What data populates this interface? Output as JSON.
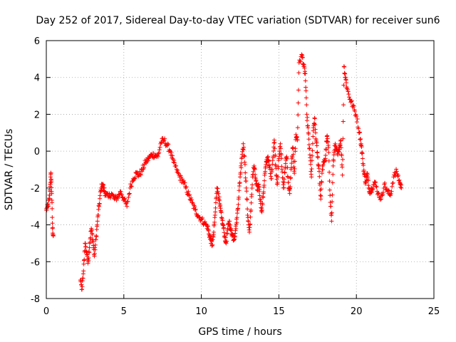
{
  "chart_data": {
    "type": "scatter",
    "title": "Day 252 of 2017, Sidereal Day-to-day VTEC variation (SDTVAR) for receiver sun6",
    "xlabel": "GPS time / hours",
    "ylabel": "SDTVAR / TECUs",
    "xlim": [
      0,
      25
    ],
    "ylim": [
      -8,
      6
    ],
    "x_ticks": [
      0,
      5,
      10,
      15,
      20,
      25
    ],
    "y_ticks": [
      -8,
      -6,
      -4,
      -2,
      0,
      2,
      4,
      6
    ],
    "grid": true,
    "marker": "+",
    "color": "#ff0000",
    "series": [
      {
        "name": "SDTVAR",
        "anchors": [
          [
            0.0,
            -3.2
          ],
          [
            0.1,
            -3.0
          ],
          [
            0.2,
            -2.6
          ],
          [
            0.25,
            -1.8
          ],
          [
            0.3,
            -1.2
          ],
          [
            0.35,
            -2.3
          ],
          [
            0.4,
            -4.2
          ],
          [
            0.45,
            -4.6
          ],
          [
            2.2,
            -7.0
          ],
          [
            2.3,
            -7.5
          ],
          [
            2.4,
            -6.5
          ],
          [
            2.5,
            -5.0
          ],
          [
            2.6,
            -5.5
          ],
          [
            2.7,
            -6.0
          ],
          [
            2.8,
            -5.0
          ],
          [
            2.9,
            -4.2
          ],
          [
            3.0,
            -4.8
          ],
          [
            3.1,
            -5.7
          ],
          [
            3.2,
            -4.8
          ],
          [
            3.3,
            -3.8
          ],
          [
            3.4,
            -3.0
          ],
          [
            3.5,
            -2.2
          ],
          [
            3.6,
            -1.8
          ],
          [
            3.7,
            -2.0
          ],
          [
            3.8,
            -2.3
          ],
          [
            4.0,
            -2.5
          ],
          [
            4.2,
            -2.3
          ],
          [
            4.4,
            -2.6
          ],
          [
            4.6,
            -2.5
          ],
          [
            4.8,
            -2.2
          ],
          [
            5.0,
            -2.6
          ],
          [
            5.2,
            -3.0
          ],
          [
            5.4,
            -2.0
          ],
          [
            5.6,
            -1.5
          ],
          [
            5.8,
            -1.2
          ],
          [
            6.0,
            -1.3
          ],
          [
            6.2,
            -1.0
          ],
          [
            6.4,
            -0.6
          ],
          [
            6.6,
            -0.4
          ],
          [
            6.8,
            -0.2
          ],
          [
            7.0,
            -0.2
          ],
          [
            7.2,
            -0.3
          ],
          [
            7.4,
            0.5
          ],
          [
            7.6,
            0.6
          ],
          [
            7.8,
            0.3
          ],
          [
            8.0,
            0.0
          ],
          [
            8.2,
            -0.6
          ],
          [
            8.4,
            -1.0
          ],
          [
            8.6,
            -1.4
          ],
          [
            8.8,
            -1.6
          ],
          [
            9.0,
            -2.0
          ],
          [
            9.2,
            -2.4
          ],
          [
            9.4,
            -2.8
          ],
          [
            9.6,
            -3.2
          ],
          [
            9.8,
            -3.5
          ],
          [
            10.0,
            -3.7
          ],
          [
            10.2,
            -3.9
          ],
          [
            10.4,
            -4.1
          ],
          [
            10.5,
            -4.5
          ],
          [
            10.6,
            -4.8
          ],
          [
            10.7,
            -5.1
          ],
          [
            10.8,
            -4.4
          ],
          [
            10.9,
            -3.3
          ],
          [
            11.0,
            -2.0
          ],
          [
            11.1,
            -2.3
          ],
          [
            11.2,
            -3.0
          ],
          [
            11.3,
            -3.6
          ],
          [
            11.4,
            -4.0
          ],
          [
            11.5,
            -4.6
          ],
          [
            11.6,
            -5.0
          ],
          [
            11.7,
            -4.2
          ],
          [
            11.8,
            -3.8
          ],
          [
            11.9,
            -4.3
          ],
          [
            12.0,
            -4.5
          ],
          [
            12.1,
            -4.8
          ],
          [
            12.2,
            -4.3
          ],
          [
            12.3,
            -3.6
          ],
          [
            12.4,
            -2.6
          ],
          [
            12.5,
            -1.4
          ],
          [
            12.6,
            -0.4
          ],
          [
            12.7,
            0.4
          ],
          [
            12.8,
            -0.6
          ],
          [
            12.9,
            -2.0
          ],
          [
            13.0,
            -3.6
          ],
          [
            13.1,
            -4.4
          ],
          [
            13.2,
            -3.2
          ],
          [
            13.3,
            -1.4
          ],
          [
            13.4,
            -0.8
          ],
          [
            13.5,
            -1.5
          ],
          [
            13.6,
            -2.1
          ],
          [
            13.7,
            -1.8
          ],
          [
            13.8,
            -2.6
          ],
          [
            13.9,
            -3.3
          ],
          [
            14.0,
            -2.3
          ],
          [
            14.1,
            -1.2
          ],
          [
            14.2,
            -0.6
          ],
          [
            14.3,
            -0.3
          ],
          [
            14.4,
            -0.9
          ],
          [
            14.5,
            -1.5
          ],
          [
            14.6,
            -0.5
          ],
          [
            14.7,
            0.6
          ],
          [
            14.8,
            -0.8
          ],
          [
            14.9,
            -1.8
          ],
          [
            15.0,
            -0.4
          ],
          [
            15.1,
            0.4
          ],
          [
            15.2,
            -1.0
          ],
          [
            15.3,
            -2.0
          ],
          [
            15.4,
            -0.9
          ],
          [
            15.5,
            -0.3
          ],
          [
            15.6,
            -1.7
          ],
          [
            15.7,
            -2.3
          ],
          [
            15.8,
            -0.9
          ],
          [
            15.9,
            0.2
          ],
          [
            16.0,
            -1.2
          ],
          [
            16.1,
            0.9
          ],
          [
            16.2,
            0.6
          ],
          [
            16.3,
            4.8
          ],
          [
            16.5,
            5.2
          ],
          [
            16.6,
            4.6
          ],
          [
            16.7,
            4.2
          ],
          [
            16.8,
            2.0
          ],
          [
            16.9,
            1.0
          ],
          [
            17.0,
            -0.2
          ],
          [
            17.1,
            -1.4
          ],
          [
            17.2,
            0.8
          ],
          [
            17.3,
            1.8
          ],
          [
            17.4,
            0.6
          ],
          [
            17.5,
            -0.3
          ],
          [
            17.6,
            -1.1
          ],
          [
            17.7,
            -2.6
          ],
          [
            17.8,
            -1.0
          ],
          [
            17.9,
            -0.6
          ],
          [
            18.0,
            -0.4
          ],
          [
            18.1,
            0.8
          ],
          [
            18.2,
            0.2
          ],
          [
            18.3,
            -2.4
          ],
          [
            18.4,
            -3.8
          ],
          [
            18.5,
            -0.8
          ],
          [
            18.6,
            0.3
          ],
          [
            18.7,
            0.1
          ],
          [
            18.8,
            -0.2
          ],
          [
            18.9,
            0.2
          ],
          [
            19.0,
            0.6
          ],
          [
            19.1,
            -1.3
          ],
          [
            19.2,
            4.6
          ],
          [
            19.3,
            4.0
          ],
          [
            19.4,
            3.4
          ],
          [
            19.6,
            2.8
          ],
          [
            19.8,
            2.4
          ],
          [
            20.0,
            1.9
          ],
          [
            20.2,
            1.0
          ],
          [
            20.3,
            0.4
          ],
          [
            20.4,
            -0.4
          ],
          [
            20.5,
            -1.2
          ],
          [
            20.6,
            -1.7
          ],
          [
            20.7,
            -1.2
          ],
          [
            20.8,
            -2.0
          ],
          [
            20.9,
            -2.2
          ],
          [
            21.0,
            -2.0
          ],
          [
            21.2,
            -1.7
          ],
          [
            21.4,
            -2.3
          ],
          [
            21.6,
            -2.6
          ],
          [
            21.8,
            -1.8
          ],
          [
            22.0,
            -2.2
          ],
          [
            22.2,
            -2.4
          ],
          [
            22.4,
            -1.4
          ],
          [
            22.6,
            -1.1
          ],
          [
            22.8,
            -1.7
          ],
          [
            22.9,
            -2.0
          ]
        ]
      }
    ]
  }
}
